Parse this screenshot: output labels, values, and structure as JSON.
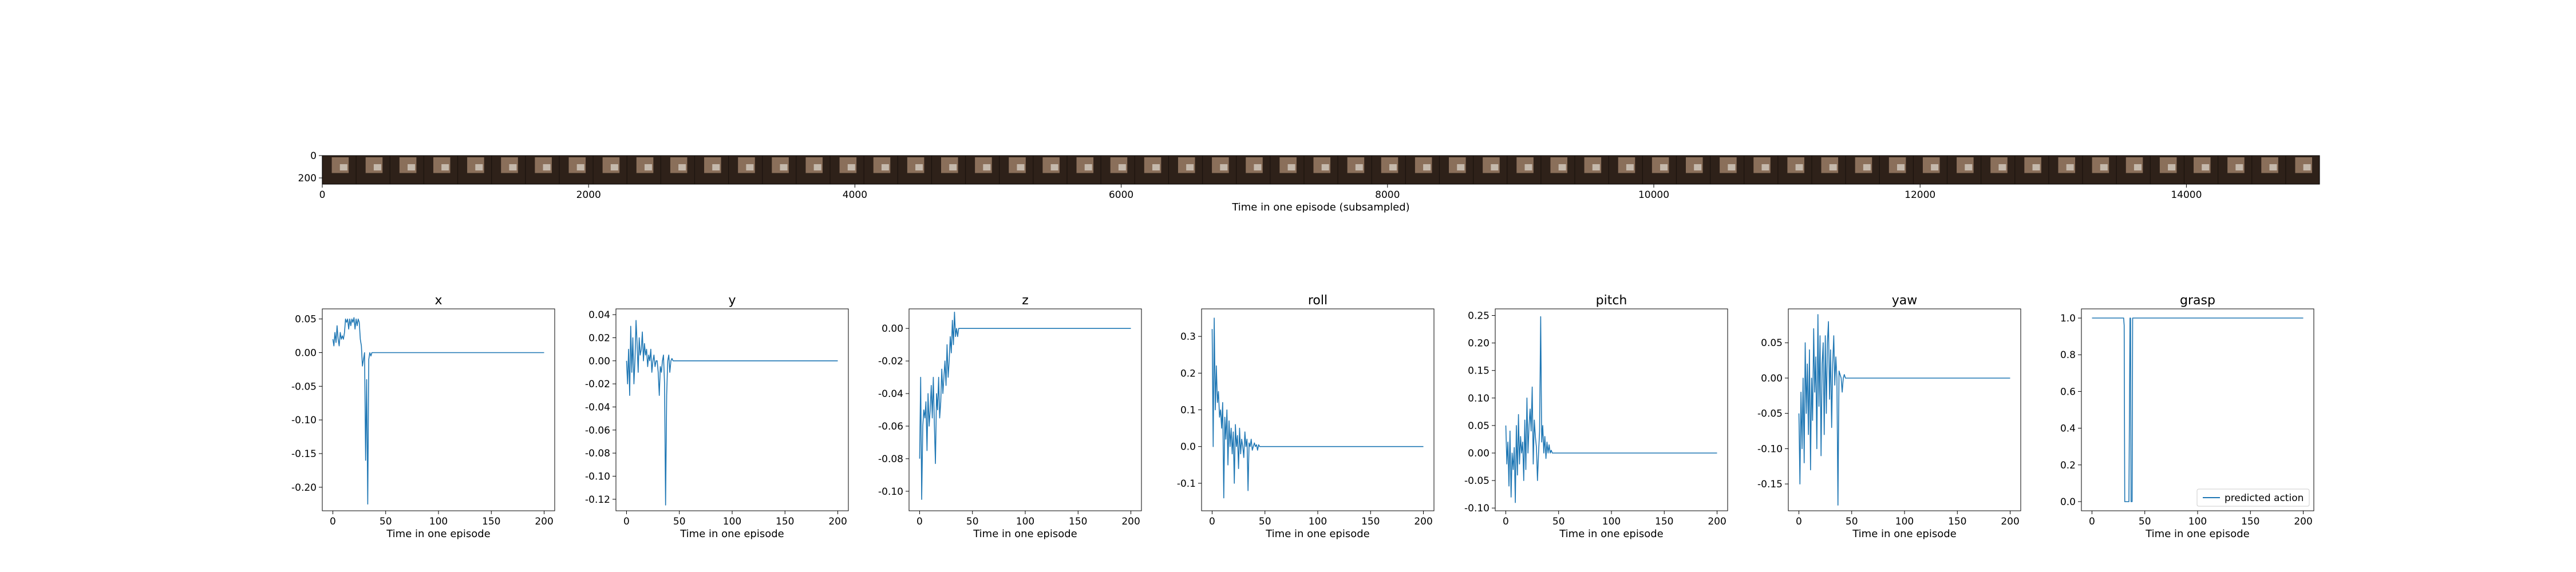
{
  "colors": {
    "series": "#1f77b4",
    "axis": "#000000",
    "strip_dark": "#2e2119",
    "strip_light": "#9a7c66",
    "strip_mid": "#6b5243"
  },
  "chart_data": [
    {
      "type": "image-strip",
      "xlabel": "Time in one episode (subsampled)",
      "xlim": [
        0,
        15000
      ],
      "ylim": [
        256,
        0
      ],
      "x_ticks": [
        "0",
        "2000",
        "4000",
        "6000",
        "8000",
        "10000",
        "12000",
        "14000"
      ],
      "y_ticks": [
        "0",
        "200"
      ],
      "frames": 59
    },
    {
      "type": "line",
      "title": "x",
      "xlabel": "Time in one episode",
      "xlim": [
        -10,
        210
      ],
      "ylim": [
        -0.235,
        0.065
      ],
      "x_ticks": [
        "0",
        "50",
        "100",
        "150",
        "200"
      ],
      "y_ticks": [
        "0.05",
        "0.00",
        "-0.05",
        "-0.10",
        "-0.15",
        "-0.20"
      ],
      "x": [
        0,
        1,
        2,
        3,
        4,
        5,
        6,
        7,
        8,
        9,
        10,
        11,
        12,
        13,
        14,
        15,
        16,
        17,
        18,
        19,
        20,
        21,
        22,
        23,
        24,
        25,
        26,
        27,
        28,
        29,
        30,
        31,
        32,
        33,
        34,
        35,
        36,
        37,
        38,
        39,
        40,
        200
      ],
      "y": [
        0.02,
        0.01,
        0.03,
        0.015,
        0.04,
        0.02,
        0.01,
        0.03,
        0.02,
        0.025,
        0.02,
        0.03,
        0.05,
        0.045,
        0.05,
        0.035,
        0.05,
        0.04,
        0.05,
        0.045,
        0.052,
        0.035,
        0.05,
        0.04,
        0.05,
        0.045,
        0.02,
        0.01,
        -0.02,
        -0.01,
        0.0,
        -0.16,
        -0.04,
        -0.225,
        -0.01,
        0.0,
        -0.005,
        0.0,
        0.0,
        0.0,
        0.0,
        0.0
      ]
    },
    {
      "type": "line",
      "title": "y",
      "xlabel": "Time in one episode",
      "xlim": [
        -10,
        210
      ],
      "ylim": [
        -0.13,
        0.045
      ],
      "x_ticks": [
        "0",
        "50",
        "100",
        "150",
        "200"
      ],
      "y_ticks": [
        "0.04",
        "0.02",
        "0.00",
        "-0.02",
        "-0.04",
        "-0.06",
        "-0.08",
        "-0.10",
        "-0.12"
      ],
      "x": [
        0,
        1,
        2,
        3,
        4,
        5,
        6,
        7,
        8,
        9,
        10,
        11,
        12,
        13,
        14,
        15,
        16,
        17,
        18,
        19,
        20,
        21,
        22,
        23,
        24,
        25,
        26,
        27,
        28,
        29,
        30,
        31,
        32,
        33,
        34,
        35,
        36,
        37,
        38,
        39,
        40,
        41,
        42,
        43,
        44,
        45,
        50,
        200
      ],
      "y": [
        0.0,
        -0.02,
        0.01,
        -0.03,
        0.03,
        -0.01,
        0.02,
        -0.02,
        0.0,
        0.035,
        0.015,
        -0.01,
        0.02,
        0.005,
        0.01,
        0.025,
        0.0,
        0.015,
        0.005,
        0.01,
        -0.005,
        0.005,
        0.0,
        0.01,
        -0.01,
        0.0,
        0.005,
        -0.005,
        0.0,
        0.0,
        -0.01,
        -0.03,
        -0.005,
        -0.01,
        0.0,
        0.005,
        -0.02,
        -0.125,
        -0.03,
        0.0,
        0.005,
        -0.01,
        0.0,
        0.002,
        0.0,
        0.0,
        0.0,
        0.0
      ]
    },
    {
      "type": "line",
      "title": "z",
      "xlabel": "Time in one episode",
      "xlim": [
        -10,
        210
      ],
      "ylim": [
        -0.112,
        0.012
      ],
      "x_ticks": [
        "0",
        "50",
        "100",
        "150",
        "200"
      ],
      "y_ticks": [
        "0.00",
        "-0.02",
        "-0.04",
        "-0.06",
        "-0.08",
        "-0.10"
      ],
      "x": [
        0,
        1,
        2,
        3,
        4,
        5,
        6,
        7,
        8,
        9,
        10,
        11,
        12,
        13,
        14,
        15,
        16,
        17,
        18,
        19,
        20,
        21,
        22,
        23,
        24,
        25,
        26,
        27,
        28,
        29,
        30,
        31,
        32,
        33,
        34,
        35,
        36,
        37,
        38,
        39,
        40,
        42,
        44,
        46,
        200
      ],
      "y": [
        -0.08,
        -0.03,
        -0.105,
        -0.06,
        -0.05,
        -0.055,
        -0.045,
        -0.075,
        -0.04,
        -0.06,
        -0.05,
        -0.035,
        -0.055,
        -0.03,
        -0.06,
        -0.083,
        -0.04,
        -0.05,
        -0.03,
        -0.055,
        -0.045,
        -0.025,
        -0.04,
        -0.03,
        -0.02,
        -0.035,
        -0.01,
        -0.03,
        -0.02,
        -0.005,
        -0.015,
        0.005,
        -0.01,
        0.01,
        -0.005,
        0.0,
        -0.005,
        0.0,
        0.0,
        0.0,
        0.0,
        0.0,
        0.0,
        0.0,
        0.0
      ]
    },
    {
      "type": "line",
      "title": "roll",
      "xlabel": "Time in one episode",
      "xlim": [
        -10,
        210
      ],
      "ylim": [
        -0.175,
        0.375
      ],
      "x_ticks": [
        "0",
        "50",
        "100",
        "150",
        "200"
      ],
      "y_ticks": [
        "0.3",
        "0.2",
        "0.1",
        "0.0",
        "-0.1"
      ],
      "x": [
        0,
        1,
        2,
        3,
        4,
        5,
        6,
        7,
        8,
        9,
        10,
        11,
        12,
        13,
        14,
        15,
        16,
        17,
        18,
        19,
        20,
        21,
        22,
        23,
        24,
        25,
        26,
        27,
        28,
        29,
        30,
        31,
        32,
        33,
        34,
        35,
        36,
        37,
        38,
        39,
        40,
        41,
        42,
        43,
        44,
        45,
        46,
        47,
        48,
        50,
        200
      ],
      "y": [
        0.32,
        0.0,
        0.35,
        0.1,
        0.22,
        0.12,
        0.15,
        0.08,
        0.1,
        0.05,
        0.12,
        -0.14,
        0.08,
        0.02,
        0.1,
        -0.05,
        0.07,
        0.0,
        0.05,
        -0.02,
        0.04,
        -0.1,
        0.06,
        0.0,
        0.03,
        -0.06,
        0.05,
        -0.02,
        0.02,
        0.0,
        -0.03,
        0.04,
        0.0,
        0.02,
        -0.12,
        0.01,
        0.0,
        0.02,
        -0.01,
        0.0,
        0.01,
        0.0,
        0.005,
        -0.01,
        0.005,
        0.0,
        0.0,
        0.0,
        0.0,
        0.0,
        0.0
      ]
    },
    {
      "type": "line",
      "title": "pitch",
      "xlabel": "Time in one episode",
      "xlim": [
        -10,
        210
      ],
      "ylim": [
        -0.105,
        0.262
      ],
      "x_ticks": [
        "0",
        "50",
        "100",
        "150",
        "200"
      ],
      "y_ticks": [
        "0.25",
        "0.20",
        "0.15",
        "0.10",
        "0.05",
        "0.00",
        "-0.05",
        "-0.10"
      ],
      "x": [
        0,
        1,
        2,
        3,
        4,
        5,
        6,
        7,
        8,
        9,
        10,
        11,
        12,
        13,
        14,
        15,
        16,
        17,
        18,
        19,
        20,
        21,
        22,
        23,
        24,
        25,
        26,
        27,
        28,
        29,
        30,
        31,
        32,
        33,
        34,
        35,
        36,
        37,
        38,
        39,
        40,
        41,
        42,
        43,
        44,
        45,
        46,
        50,
        200
      ],
      "y": [
        0.05,
        -0.02,
        0.02,
        -0.06,
        0.04,
        -0.08,
        0.0,
        -0.03,
        0.01,
        -0.09,
        0.05,
        -0.04,
        0.07,
        -0.02,
        0.03,
        0.0,
        0.02,
        -0.05,
        0.06,
        -0.03,
        0.1,
        0.0,
        0.05,
        0.08,
        0.04,
        0.12,
        -0.02,
        0.06,
        0.03,
        0.01,
        -0.05,
        0.0,
        0.04,
        0.248,
        0.02,
        0.05,
        0.0,
        0.03,
        -0.01,
        0.02,
        0.0,
        0.015,
        0.0,
        0.005,
        0.0,
        0.0,
        0.0,
        0.0,
        0.0
      ]
    },
    {
      "type": "line",
      "title": "yaw",
      "xlabel": "Time in one episode",
      "xlim": [
        -10,
        210
      ],
      "ylim": [
        -0.188,
        0.098
      ],
      "x_ticks": [
        "0",
        "50",
        "100",
        "150",
        "200"
      ],
      "y_ticks": [
        "0.05",
        "0.00",
        "-0.05",
        "-0.10",
        "-0.15"
      ],
      "x": [
        0,
        1,
        2,
        3,
        4,
        5,
        6,
        7,
        8,
        9,
        10,
        11,
        12,
        13,
        14,
        15,
        16,
        17,
        18,
        19,
        20,
        21,
        22,
        23,
        24,
        25,
        26,
        27,
        28,
        29,
        30,
        31,
        32,
        33,
        34,
        35,
        36,
        37,
        38,
        39,
        40,
        41,
        42,
        43,
        44,
        45,
        46,
        47,
        48,
        50,
        200
      ],
      "y": [
        -0.05,
        -0.15,
        -0.02,
        -0.1,
        0.0,
        -0.12,
        0.05,
        -0.05,
        0.02,
        -0.08,
        0.04,
        -0.13,
        0.0,
        -0.06,
        0.07,
        -0.02,
        0.03,
        -0.1,
        0.09,
        -0.04,
        0.06,
        -0.11,
        0.02,
        0.05,
        -0.08,
        0.06,
        -0.05,
        0.05,
        0.08,
        -0.03,
        0.04,
        -0.07,
        0.02,
        0.06,
        -0.01,
        0.03,
        0.0,
        -0.18,
        0.01,
        0.005,
        0.0,
        -0.02,
        0.0,
        0.005,
        0.0,
        0.0,
        0.0,
        0.0,
        0.0,
        0.0,
        0.0
      ]
    },
    {
      "type": "line",
      "title": "grasp",
      "xlabel": "Time in one episode",
      "xlim": [
        -10,
        210
      ],
      "ylim": [
        -0.05,
        1.05
      ],
      "x_ticks": [
        "0",
        "50",
        "100",
        "150",
        "200"
      ],
      "y_ticks": [
        "1.0",
        "0.8",
        "0.6",
        "0.4",
        "0.2",
        "0.0"
      ],
      "x": [
        0,
        30,
        30.5,
        31,
        35,
        36,
        36.5,
        37,
        38,
        38.5,
        200
      ],
      "y": [
        1,
        1,
        0.96,
        0,
        0,
        1,
        1,
        0,
        0,
        1,
        1
      ],
      "legend": "predicted action",
      "legend_position": "lower right"
    }
  ]
}
